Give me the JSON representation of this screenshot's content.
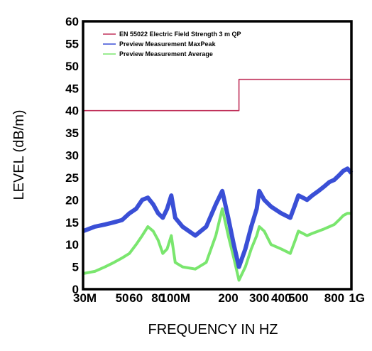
{
  "chart_data": {
    "type": "line",
    "xlabel": "FREQUENCY IN HZ",
    "ylabel": "LEVEL (dB/m)",
    "x_scale": "log",
    "xlim": [
      30000000,
      1000000000
    ],
    "ylim": [
      0,
      60
    ],
    "grid": false,
    "legend_position": "top-left",
    "y_ticks": [
      0,
      5,
      10,
      15,
      20,
      25,
      30,
      35,
      40,
      45,
      50,
      55,
      60
    ],
    "x_ticks": [
      {
        "value": 30000000,
        "label": "30M"
      },
      {
        "value": 50000000,
        "label": "50"
      },
      {
        "value": 60000000,
        "label": "60"
      },
      {
        "value": 80000000,
        "label": "80"
      },
      {
        "value": 100000000,
        "label": "100M"
      },
      {
        "value": 200000000,
        "label": "200"
      },
      {
        "value": 300000000,
        "label": "300"
      },
      {
        "value": 400000000,
        "label": "400"
      },
      {
        "value": 500000000,
        "label": "500"
      },
      {
        "value": 800000000,
        "label": "800"
      },
      {
        "value": 1000000000,
        "label": "1G"
      }
    ],
    "series": [
      {
        "name": "EN 55022 Electric  Field Strength 3 m QP",
        "color": "#c0315a",
        "style": "step",
        "x": [
          30000000,
          230000000,
          230000000,
          1000000000
        ],
        "y": [
          40,
          40,
          47,
          47
        ]
      },
      {
        "name": "Preview Measurement  MaxPeak",
        "color": "#3a4fd6",
        "x": [
          30000000,
          35000000,
          40000000,
          45000000,
          50000000,
          55000000,
          60000000,
          65000000,
          70000000,
          75000000,
          80000000,
          85000000,
          90000000,
          95000000,
          100000000,
          110000000,
          130000000,
          150000000,
          170000000,
          185000000,
          200000000,
          215000000,
          230000000,
          250000000,
          270000000,
          290000000,
          300000000,
          320000000,
          350000000,
          400000000,
          450000000,
          480000000,
          500000000,
          530000000,
          560000000,
          600000000,
          650000000,
          700000000,
          750000000,
          800000000,
          850000000,
          900000000,
          950000000,
          1000000000
        ],
        "y": [
          13,
          14,
          14.5,
          15,
          15.5,
          17,
          18,
          20,
          20.5,
          19,
          17,
          16,
          18,
          21,
          16,
          14,
          12,
          14,
          19,
          22,
          16,
          10,
          5,
          9,
          14,
          18,
          22,
          20,
          18.5,
          17,
          16,
          19,
          21,
          20.5,
          20,
          21,
          22,
          23,
          24,
          24.5,
          25.5,
          26.5,
          27,
          26
        ]
      },
      {
        "name": "Preview Measurement Average",
        "color": "#7ae66e",
        "x": [
          30000000,
          35000000,
          40000000,
          45000000,
          50000000,
          55000000,
          60000000,
          65000000,
          70000000,
          75000000,
          80000000,
          85000000,
          90000000,
          95000000,
          100000000,
          110000000,
          130000000,
          150000000,
          170000000,
          185000000,
          200000000,
          215000000,
          230000000,
          250000000,
          270000000,
          290000000,
          300000000,
          320000000,
          350000000,
          400000000,
          450000000,
          480000000,
          500000000,
          530000000,
          560000000,
          600000000,
          650000000,
          700000000,
          750000000,
          800000000,
          850000000,
          900000000,
          950000000,
          1000000000
        ],
        "y": [
          3.5,
          4,
          5,
          6,
          7,
          8,
          10,
          12,
          14,
          13,
          11,
          8,
          9,
          12,
          6,
          5,
          4.5,
          6,
          12,
          18,
          12,
          7,
          2,
          5,
          9,
          12,
          14,
          13,
          10,
          9,
          8,
          11,
          13,
          12.5,
          12,
          12.5,
          13,
          13.5,
          14,
          14.5,
          15.5,
          16.5,
          17,
          17
        ]
      }
    ]
  }
}
